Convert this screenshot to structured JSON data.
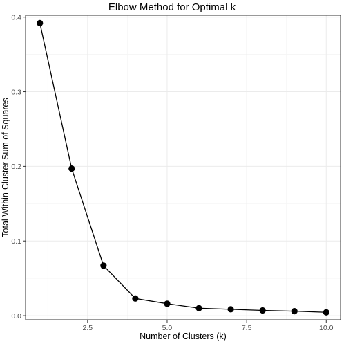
{
  "chart_data": {
    "type": "line",
    "title": "Elbow Method for Optimal k",
    "xlabel": "Number of Clusters (k)",
    "ylabel": "Total Within-Cluster Sum of Squares",
    "x": [
      1,
      2,
      3,
      4,
      5,
      6,
      7,
      8,
      9,
      10
    ],
    "series": [
      {
        "values": [
          0.392,
          0.197,
          0.067,
          0.023,
          0.016,
          0.01,
          0.0085,
          0.007,
          0.006,
          0.0045
        ]
      }
    ],
    "xlim": [
      0.55,
      10.45
    ],
    "ylim": [
      -0.0055,
      0.4025
    ],
    "xticks": [
      2.5,
      5.0,
      7.5,
      10.0
    ],
    "xtick_labels": [
      "2.5",
      "5.0",
      "7.5",
      "10.0"
    ],
    "yticks": [
      0.0,
      0.1,
      0.2,
      0.3,
      0.4
    ],
    "ytick_labels": [
      "0.0",
      "0.1",
      "0.2",
      "0.3",
      "0.4"
    ],
    "grid": true,
    "marker": "filled-circle",
    "colors": {
      "line": "#000000",
      "points": "#000000",
      "grid": "#ebebeb",
      "panel_border": "#333333"
    }
  }
}
